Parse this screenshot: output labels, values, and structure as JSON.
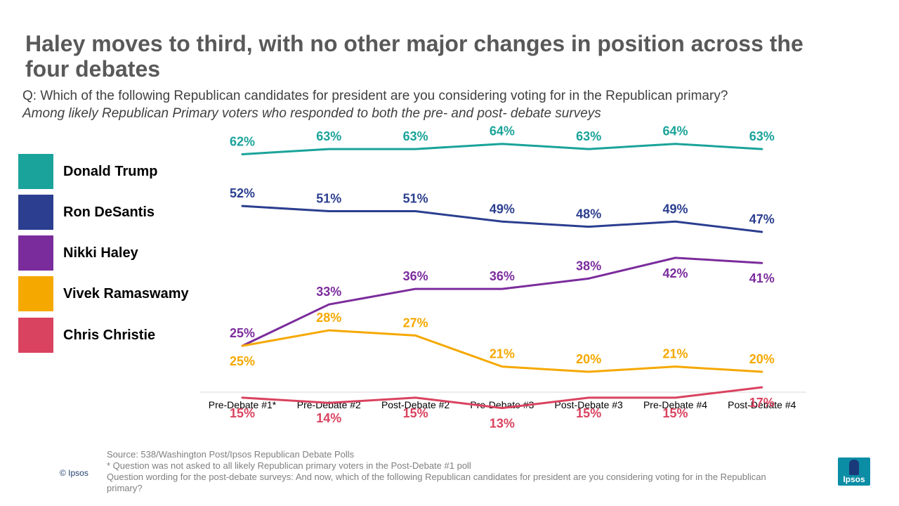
{
  "header": {
    "title": "Haley moves to third, with no other major changes in position across the four debates",
    "question": "Q: Which of the following Republican candidates for president are you considering voting for in the Republican primary?",
    "subtitle": "Among likely Republican Primary voters who responded to both the pre- and post- debate surveys"
  },
  "legend": [
    {
      "name": "Donald Trump",
      "color": "#1aa39a"
    },
    {
      "name": "Ron DeSantis",
      "color": "#2b3e8f"
    },
    {
      "name": "Nikki Haley",
      "color": "#7b2c9c"
    },
    {
      "name": "Vivek Ramaswamy",
      "color": "#f5a800"
    },
    {
      "name": "Chris Christie",
      "color": "#d9435f"
    }
  ],
  "chart_data": {
    "type": "line",
    "title": "Haley moves to third, with no other major changes in position across the four debates",
    "xlabel": "",
    "ylabel": "",
    "grid": false,
    "legend_position": "left",
    "ylim": [
      0,
      70
    ],
    "categories": [
      "Pre-Debate #1*",
      "Pre-Debate #2",
      "Post-Debate #2",
      "Pre-Debate #3",
      "Post-Debate #3",
      "Pre-Debate #4",
      "Post-Debate #4"
    ],
    "series": [
      {
        "name": "Donald Trump",
        "color": "#1aa39a",
        "values": [
          62,
          63,
          63,
          64,
          63,
          64,
          63
        ],
        "labels": [
          "62%",
          "63%",
          "63%",
          "64%",
          "63%",
          "64%",
          "63%"
        ]
      },
      {
        "name": "Ron DeSantis",
        "color": "#2b3e8f",
        "values": [
          52,
          51,
          51,
          49,
          48,
          49,
          47
        ],
        "labels": [
          "52%",
          "51%",
          "51%",
          "49%",
          "48%",
          "49%",
          "47%"
        ]
      },
      {
        "name": "Nikki Haley",
        "color": "#7b2c9c",
        "values": [
          25,
          33,
          36,
          36,
          38,
          42,
          41
        ],
        "labels": [
          "25%",
          "33%",
          "36%",
          "36%",
          "38%",
          "42%",
          "41%"
        ]
      },
      {
        "name": "Vivek Ramaswamy",
        "color": "#f5a800",
        "values": [
          25,
          28,
          27,
          21,
          20,
          21,
          20
        ],
        "labels": [
          "25%",
          "28%",
          "27%",
          "21%",
          "20%",
          "21%",
          "20%"
        ]
      },
      {
        "name": "Chris Christie",
        "color": "#d9435f",
        "values": [
          15,
          14,
          15,
          13,
          15,
          15,
          17
        ],
        "labels": [
          "15%",
          "14%",
          "15%",
          "13%",
          "15%",
          "15%",
          "17%"
        ]
      }
    ]
  },
  "footer": {
    "copyright": "© Ipsos",
    "source": "Source: 538/Washington Post/Ipsos Republican Debate Polls",
    "note": "* Question was not asked to all likely Republican primary voters in the Post-Debate #1 poll",
    "wording": "Question wording for the post-debate surveys: And now, which of the following Republican candidates for president are you considering voting for in the Republican primary?",
    "logo_text": "Ipsos"
  }
}
